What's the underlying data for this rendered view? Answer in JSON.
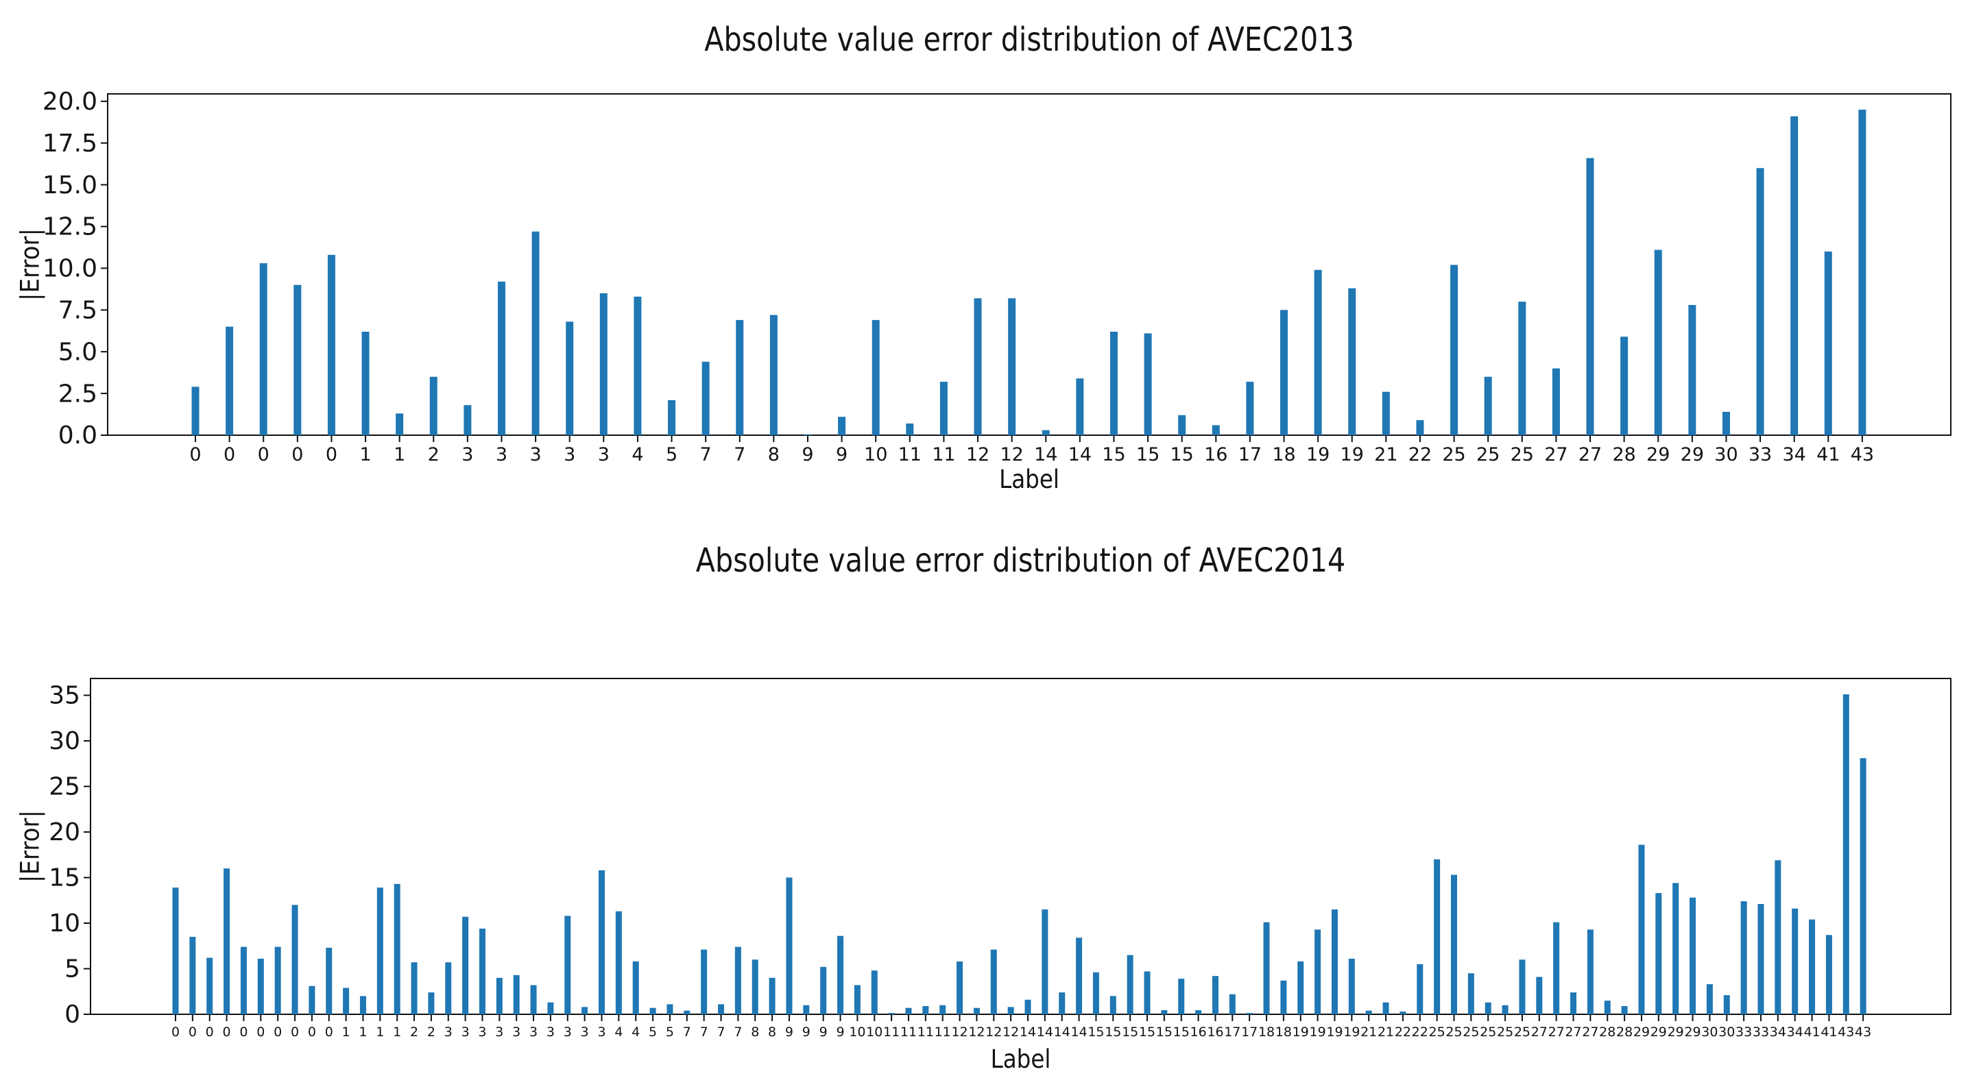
{
  "figure": {
    "background": "#ffffff",
    "bar_color": "#1f77b4",
    "axis_color": "#111111",
    "text_color": "#141414"
  },
  "chart_data": [
    {
      "type": "bar",
      "title": "Absolute value error distribution of AVEC2013",
      "xlabel": "Label",
      "ylabel": "|Error|",
      "grid": false,
      "legend": null,
      "ylim": [
        0,
        20.44
      ],
      "yticks": [
        0,
        2.5,
        5,
        7.5,
        10,
        12.5,
        15,
        17.5,
        20
      ],
      "ytick_labels": [
        "0.0",
        "2.5",
        "5.0",
        "7.5",
        "10.0",
        "12.5",
        "15.0",
        "17.5",
        "20.0"
      ],
      "categories": [
        "0",
        "0",
        "0",
        "0",
        "0",
        "1",
        "1",
        "2",
        "3",
        "3",
        "3",
        "3",
        "3",
        "4",
        "5",
        "7",
        "7",
        "8",
        "9",
        "9",
        "10",
        "11",
        "11",
        "12",
        "12",
        "14",
        "14",
        "15",
        "15",
        "15",
        "16",
        "17",
        "18",
        "19",
        "19",
        "21",
        "22",
        "25",
        "25",
        "25",
        "27",
        "27",
        "28",
        "29",
        "29",
        "30",
        "33",
        "34",
        "41",
        "43"
      ],
      "values": [
        2.9,
        6.5,
        10.3,
        9.0,
        10.8,
        6.2,
        1.3,
        3.5,
        1.8,
        9.2,
        12.2,
        6.8,
        8.5,
        8.3,
        2.1,
        4.4,
        6.9,
        7.2,
        0.05,
        1.1,
        6.9,
        0.7,
        3.2,
        8.2,
        8.2,
        0.3,
        3.4,
        6.2,
        6.1,
        1.2,
        0.6,
        3.2,
        7.5,
        9.9,
        8.8,
        2.6,
        0.9,
        10.2,
        3.5,
        8.0,
        4.0,
        16.6,
        5.9,
        11.1,
        7.8,
        1.4,
        16.0,
        19.1,
        11.0,
        19.5
      ]
    },
    {
      "type": "bar",
      "title": "Absolute value error distribution of AVEC2014",
      "xlabel": "Label",
      "ylabel": "|Error|",
      "grid": false,
      "legend": null,
      "ylim": [
        0,
        36.84
      ],
      "yticks": [
        0,
        5,
        10,
        15,
        20,
        25,
        30,
        35
      ],
      "ytick_labels": [
        "0",
        "5",
        "10",
        "15",
        "20",
        "25",
        "30",
        "35"
      ],
      "categories": [
        "0",
        "0",
        "0",
        "0",
        "0",
        "0",
        "0",
        "0",
        "0",
        "0",
        "1",
        "1",
        "1",
        "1",
        "2",
        "2",
        "3",
        "3",
        "3",
        "3",
        "3",
        "3",
        "3",
        "3",
        "3",
        "3",
        "4",
        "4",
        "5",
        "5",
        "7",
        "7",
        "7",
        "7",
        "8",
        "8",
        "9",
        "9",
        "9",
        "9",
        "10",
        "10",
        "11",
        "11",
        "11",
        "11",
        "12",
        "12",
        "12",
        "12",
        "14",
        "14",
        "14",
        "14",
        "15",
        "15",
        "15",
        "15",
        "15",
        "15",
        "16",
        "16",
        "17",
        "17",
        "18",
        "18",
        "19",
        "19",
        "19",
        "19",
        "21",
        "21",
        "22",
        "22",
        "25",
        "25",
        "25",
        "25",
        "25",
        "25",
        "27",
        "27",
        "27",
        "27",
        "28",
        "28",
        "29",
        "29",
        "29",
        "29",
        "30",
        "30",
        "33",
        "33",
        "34",
        "34",
        "41",
        "41",
        "43",
        "43"
      ],
      "values": [
        13.9,
        8.5,
        6.2,
        16.0,
        7.4,
        6.1,
        7.4,
        12.0,
        3.1,
        7.3,
        2.9,
        2.0,
        13.9,
        14.3,
        5.7,
        2.4,
        5.7,
        10.7,
        9.4,
        4.0,
        4.3,
        3.2,
        1.3,
        10.8,
        0.8,
        15.8,
        11.3,
        5.8,
        0.7,
        1.1,
        0.4,
        7.1,
        1.1,
        7.4,
        6.0,
        4.0,
        15.0,
        1.0,
        5.2,
        8.6,
        3.2,
        4.8,
        0.15,
        0.7,
        0.9,
        1.0,
        5.8,
        0.7,
        7.1,
        0.8,
        1.6,
        11.5,
        2.4,
        8.4,
        4.6,
        2.0,
        6.5,
        4.7,
        0.45,
        3.9,
        0.45,
        4.2,
        2.2,
        0.15,
        10.1,
        3.7,
        5.8,
        9.3,
        11.5,
        6.1,
        0.4,
        1.3,
        0.3,
        5.5,
        17.0,
        15.3,
        4.5,
        1.3,
        1.0,
        6.0,
        4.1,
        10.1,
        2.4,
        9.3,
        1.5,
        0.9,
        18.6,
        13.3,
        14.4,
        12.8,
        3.3,
        2.1,
        12.4,
        12.1,
        16.9,
        11.6,
        10.4,
        8.7,
        35.1,
        28.1
      ]
    }
  ]
}
